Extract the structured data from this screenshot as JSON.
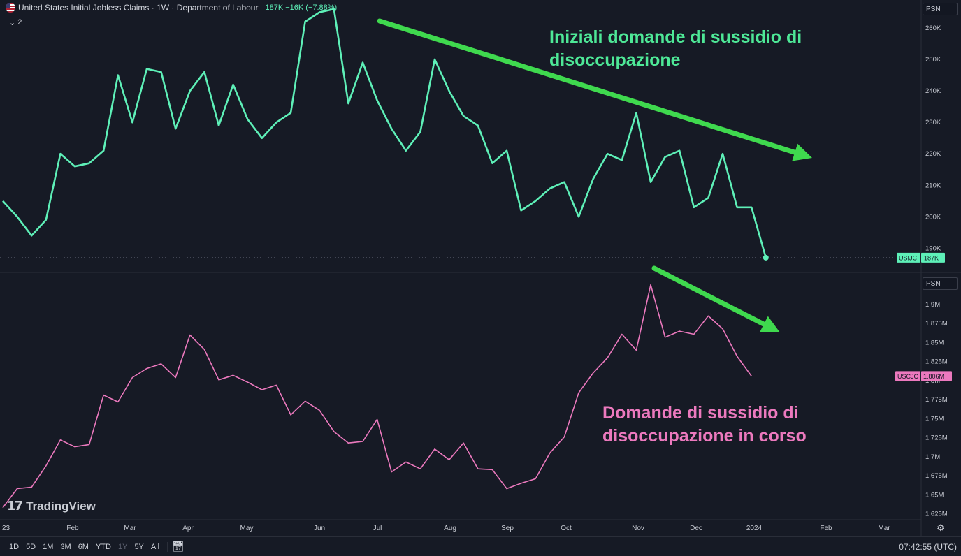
{
  "header": {
    "title": "United States Initial Jobless Claims · 1W · Department of Labour",
    "value_text": "187K −16K (−7.88%)",
    "collapse_label": "2"
  },
  "colors": {
    "background": "#161a25",
    "initial_claims": "#5ef0b8",
    "continuing_claims": "#ec79be",
    "arrow": "#3fd94e",
    "annotation_top": "#4ee897",
    "annotation_bottom": "#ec79be"
  },
  "psn_label_top": "PSN",
  "psn_label_bottom": "PSN",
  "annotations": {
    "top": [
      "Iniziali domande di sussidio di",
      "disoccupazione"
    ],
    "bottom": [
      "Domande di sussidio di",
      "disoccupazione in corso"
    ]
  },
  "watermark": "TradingView",
  "bottom_bar": {
    "ranges": [
      "1D",
      "5D",
      "1M",
      "3M",
      "6M",
      "YTD",
      "1Y",
      "5Y",
      "All"
    ],
    "active_range": "1Y",
    "clock": "07:42:55 (UTC)"
  },
  "chart_data": [
    {
      "type": "line",
      "series": [
        {
          "symbol": "USIJC",
          "last_label": "187K",
          "values": [
            205,
            200,
            194,
            199,
            220,
            216,
            217,
            221,
            245,
            230,
            247,
            246,
            228,
            240,
            246,
            229,
            242,
            231,
            225,
            230,
            233,
            262,
            265,
            266,
            236,
            249,
            237,
            228,
            221,
            227,
            250,
            240,
            232,
            229,
            217,
            221,
            202,
            205,
            209,
            211,
            200,
            212,
            220,
            218,
            233,
            211,
            219,
            221,
            203,
            206,
            220,
            203,
            203,
            187
          ]
        }
      ],
      "y_ticks": [
        "260K",
        "250K",
        "240K",
        "230K",
        "220K",
        "210K",
        "200K",
        "190K"
      ],
      "y_units": "thousands"
    },
    {
      "type": "line",
      "series": [
        {
          "symbol": "USCJC",
          "last_label": "1.806M",
          "values": [
            1.633,
            1.658,
            1.66,
            1.688,
            1.722,
            1.713,
            1.716,
            1.781,
            1.772,
            1.804,
            1.816,
            1.822,
            1.804,
            1.86,
            1.841,
            1.801,
            1.807,
            1.798,
            1.788,
            1.794,
            1.755,
            1.773,
            1.761,
            1.733,
            1.718,
            1.72,
            1.749,
            1.68,
            1.693,
            1.684,
            1.71,
            1.696,
            1.718,
            1.684,
            1.683,
            1.658,
            1.665,
            1.671,
            1.705,
            1.726,
            1.784,
            1.81,
            1.83,
            1.861,
            1.84,
            1.926,
            1.857,
            1.865,
            1.861,
            1.885,
            1.868,
            1.832,
            1.806
          ]
        }
      ],
      "y_ticks": [
        "1.9M",
        "1.875M",
        "1.85M",
        "1.825M",
        "1.8M",
        "1.775M",
        "1.75M",
        "1.725M",
        "1.7M",
        "1.675M",
        "1.65M",
        "1.625M"
      ],
      "y_units": "millions"
    }
  ],
  "x_ticks": [
    "23",
    "Feb",
    "Mar",
    "Apr",
    "May",
    "Jun",
    "Jul",
    "Aug",
    "Sep",
    "Oct",
    "Nov",
    "Dec",
    "2024",
    "Feb",
    "Mar"
  ]
}
